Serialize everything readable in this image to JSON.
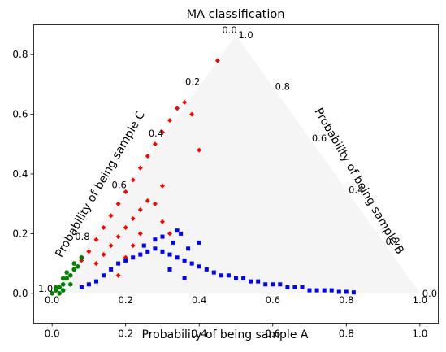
{
  "chart_data": {
    "type": "scatter",
    "title": "MA classification",
    "xlim": [
      -0.05,
      1.05
    ],
    "ylim": [
      -0.1,
      0.9
    ],
    "x_ticks": [
      "0.0",
      "0.2",
      "0.4",
      "0.6",
      "0.8",
      "1.0"
    ],
    "y_ticks": [
      "0.0",
      "0.2",
      "0.4",
      "0.6",
      "0.8"
    ],
    "ternary": {
      "axis_a_label": "Probability of being sample A",
      "axis_b_label": "Probability of being sample B",
      "axis_c_label": "Probability of being sample C",
      "a_ticks": [
        "0.0",
        "0.2",
        "0.4",
        "0.6",
        "0.8",
        "1.0"
      ],
      "b_ticks": [
        "0.0",
        "0.2",
        "0.4",
        "0.6",
        "0.8",
        "1.0"
      ],
      "c_ticks": [
        "0.0",
        "0.2",
        "0.4",
        "0.6",
        "0.8",
        "1.0"
      ],
      "background_color": "#f5f5f5"
    },
    "series": [
      {
        "color": "#0000ff",
        "marker": "square",
        "region": "low-y band extending right",
        "x": [
          0.08,
          0.1,
          0.12,
          0.14,
          0.16,
          0.18,
          0.2,
          0.22,
          0.24,
          0.26,
          0.28,
          0.3,
          0.32,
          0.34,
          0.36,
          0.38,
          0.4,
          0.42,
          0.44,
          0.46,
          0.48,
          0.5,
          0.52,
          0.54,
          0.56,
          0.58,
          0.6,
          0.62,
          0.64,
          0.66,
          0.68,
          0.7,
          0.72,
          0.74,
          0.76,
          0.78,
          0.8,
          0.82,
          0.25,
          0.28,
          0.3,
          0.33,
          0.35,
          0.37,
          0.4,
          0.32,
          0.36,
          0.34
        ],
        "y": [
          0.02,
          0.03,
          0.04,
          0.06,
          0.08,
          0.1,
          0.11,
          0.12,
          0.13,
          0.14,
          0.15,
          0.14,
          0.13,
          0.12,
          0.11,
          0.1,
          0.09,
          0.08,
          0.07,
          0.06,
          0.06,
          0.05,
          0.05,
          0.04,
          0.04,
          0.03,
          0.03,
          0.03,
          0.02,
          0.02,
          0.02,
          0.01,
          0.01,
          0.01,
          0.01,
          0.005,
          0.005,
          0.003,
          0.16,
          0.18,
          0.19,
          0.17,
          0.2,
          0.15,
          0.17,
          0.08,
          0.05,
          0.21
        ]
      },
      {
        "color": "#ff0000",
        "marker": "diamond",
        "region": "wedge along left edge",
        "x": [
          0.04,
          0.06,
          0.08,
          0.1,
          0.12,
          0.14,
          0.16,
          0.18,
          0.2,
          0.22,
          0.24,
          0.26,
          0.28,
          0.3,
          0.32,
          0.34,
          0.36,
          0.38,
          0.4,
          0.45,
          0.12,
          0.14,
          0.16,
          0.18,
          0.2,
          0.22,
          0.24,
          0.26,
          0.28,
          0.3,
          0.2,
          0.22,
          0.24,
          0.18,
          0.3,
          0.32
        ],
        "y": [
          0.05,
          0.08,
          0.11,
          0.14,
          0.18,
          0.22,
          0.26,
          0.3,
          0.34,
          0.38,
          0.42,
          0.46,
          0.5,
          0.54,
          0.58,
          0.62,
          0.64,
          0.6,
          0.48,
          0.78,
          0.1,
          0.13,
          0.16,
          0.19,
          0.22,
          0.25,
          0.28,
          0.31,
          0.3,
          0.36,
          0.12,
          0.16,
          0.2,
          0.06,
          0.24,
          0.2
        ]
      },
      {
        "color": "#008000",
        "marker": "circle",
        "region": "near origin",
        "x": [
          0.0,
          0.01,
          0.02,
          0.03,
          0.04,
          0.05,
          0.06,
          0.07,
          0.02,
          0.03,
          0.05,
          0.04,
          0.06,
          0.08,
          0.01,
          0.03
        ],
        "y": [
          0.0,
          0.01,
          0.02,
          0.03,
          0.05,
          0.06,
          0.08,
          0.09,
          0.0,
          0.01,
          0.03,
          0.07,
          0.1,
          0.12,
          0.02,
          0.05
        ]
      }
    ]
  }
}
